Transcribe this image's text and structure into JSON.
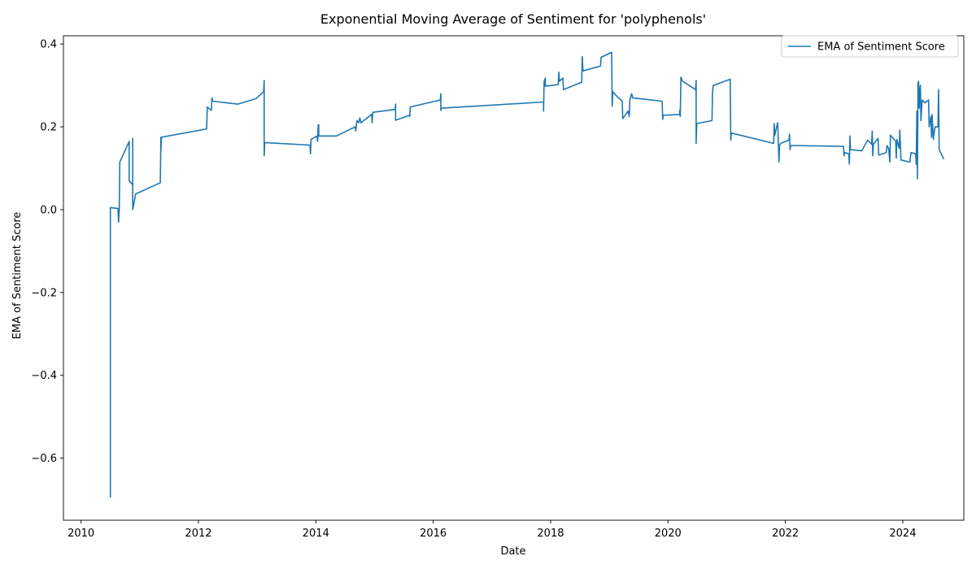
{
  "chart_data": {
    "type": "line",
    "title": "Exponential Moving Average of Sentiment for 'polyphenols'",
    "xlabel": "Date",
    "ylabel": "EMA of Sentiment Score",
    "xlim": [
      2009.7,
      2025.04
    ],
    "ylim": [
      -0.75,
      0.42
    ],
    "x_ticks": [
      2010,
      2012,
      2014,
      2016,
      2018,
      2020,
      2022,
      2024
    ],
    "x_tick_labels": [
      "2010",
      "2012",
      "2014",
      "2016",
      "2018",
      "2020",
      "2022",
      "2024"
    ],
    "y_ticks": [
      -0.6,
      -0.4,
      -0.2,
      0.0,
      0.2,
      0.4
    ],
    "y_tick_labels": [
      "−0.6",
      "−0.4",
      "−0.2",
      "0.0",
      "0.2",
      "0.4"
    ],
    "grid": false,
    "legend_position": "top-right",
    "line_color": "#1f77b4",
    "series": [
      {
        "name": "EMA of Sentiment Score",
        "points": [
          [
            2010.5,
            -0.695
          ],
          [
            2010.5,
            0.005
          ],
          [
            2010.63,
            0.003
          ],
          [
            2010.64,
            -0.03
          ],
          [
            2010.65,
            0.0
          ],
          [
            2010.66,
            0.115
          ],
          [
            2010.82,
            0.165
          ],
          [
            2010.82,
            0.07
          ],
          [
            2010.88,
            0.06
          ],
          [
            2010.88,
            0.172
          ],
          [
            2010.88,
            0.0
          ],
          [
            2010.93,
            0.038
          ],
          [
            2011.35,
            0.065
          ],
          [
            2011.36,
            0.175
          ],
          [
            2011.36,
            0.14
          ],
          [
            2011.37,
            0.175
          ],
          [
            2012.14,
            0.195
          ],
          [
            2012.15,
            0.248
          ],
          [
            2012.22,
            0.24
          ],
          [
            2012.23,
            0.27
          ],
          [
            2012.24,
            0.262
          ],
          [
            2012.67,
            0.255
          ],
          [
            2012.98,
            0.268
          ],
          [
            2013.11,
            0.285
          ],
          [
            2013.12,
            0.312
          ],
          [
            2013.12,
            0.13
          ],
          [
            2013.13,
            0.162
          ],
          [
            2013.9,
            0.156
          ],
          [
            2013.91,
            0.135
          ],
          [
            2013.92,
            0.17
          ],
          [
            2014.02,
            0.178
          ],
          [
            2014.03,
            0.165
          ],
          [
            2014.04,
            0.205
          ],
          [
            2014.05,
            0.205
          ],
          [
            2014.05,
            0.178
          ],
          [
            2014.35,
            0.178
          ],
          [
            2014.67,
            0.2
          ],
          [
            2014.68,
            0.19
          ],
          [
            2014.7,
            0.215
          ],
          [
            2014.73,
            0.21
          ],
          [
            2014.75,
            0.222
          ],
          [
            2014.77,
            0.21
          ],
          [
            2014.95,
            0.23
          ],
          [
            2014.96,
            0.21
          ],
          [
            2014.97,
            0.235
          ],
          [
            2015.35,
            0.242
          ],
          [
            2015.36,
            0.255
          ],
          [
            2015.36,
            0.216
          ],
          [
            2015.6,
            0.228
          ],
          [
            2015.6,
            0.225
          ],
          [
            2015.61,
            0.248
          ],
          [
            2016.12,
            0.265
          ],
          [
            2016.13,
            0.28
          ],
          [
            2016.13,
            0.24
          ],
          [
            2016.14,
            0.245
          ],
          [
            2017.88,
            0.26
          ],
          [
            2017.88,
            0.238
          ],
          [
            2017.89,
            0.31
          ],
          [
            2017.91,
            0.318
          ],
          [
            2017.91,
            0.298
          ],
          [
            2018.13,
            0.302
          ],
          [
            2018.14,
            0.332
          ],
          [
            2018.15,
            0.31
          ],
          [
            2018.21,
            0.318
          ],
          [
            2018.22,
            0.29
          ],
          [
            2018.53,
            0.308
          ],
          [
            2018.54,
            0.37
          ],
          [
            2018.55,
            0.335
          ],
          [
            2018.85,
            0.347
          ],
          [
            2018.86,
            0.368
          ],
          [
            2019.04,
            0.38
          ],
          [
            2019.05,
            0.25
          ],
          [
            2019.06,
            0.285
          ],
          [
            2019.1,
            0.278
          ],
          [
            2019.22,
            0.262
          ],
          [
            2019.23,
            0.22
          ],
          [
            2019.32,
            0.238
          ],
          [
            2019.34,
            0.225
          ],
          [
            2019.35,
            0.265
          ],
          [
            2019.38,
            0.28
          ],
          [
            2019.4,
            0.27
          ],
          [
            2019.9,
            0.262
          ],
          [
            2019.91,
            0.218
          ],
          [
            2019.92,
            0.228
          ],
          [
            2020.2,
            0.23
          ],
          [
            2020.2,
            0.24
          ],
          [
            2020.21,
            0.225
          ],
          [
            2020.22,
            0.32
          ],
          [
            2020.25,
            0.31
          ],
          [
            2020.47,
            0.29
          ],
          [
            2020.48,
            0.312
          ],
          [
            2020.48,
            0.16
          ],
          [
            2020.49,
            0.208
          ],
          [
            2020.75,
            0.215
          ],
          [
            2020.76,
            0.285
          ],
          [
            2020.77,
            0.3
          ],
          [
            2021.06,
            0.315
          ],
          [
            2021.07,
            0.168
          ],
          [
            2021.08,
            0.185
          ],
          [
            2021.8,
            0.16
          ],
          [
            2021.81,
            0.208
          ],
          [
            2021.82,
            0.18
          ],
          [
            2021.86,
            0.205
          ],
          [
            2021.87,
            0.21
          ],
          [
            2021.89,
            0.115
          ],
          [
            2021.9,
            0.155
          ],
          [
            2021.92,
            0.16
          ],
          [
            2022.06,
            0.168
          ],
          [
            2022.07,
            0.182
          ],
          [
            2022.08,
            0.145
          ],
          [
            2022.09,
            0.155
          ],
          [
            2022.99,
            0.153
          ],
          [
            2023.0,
            0.13
          ],
          [
            2023.01,
            0.138
          ],
          [
            2023.08,
            0.135
          ],
          [
            2023.09,
            0.11
          ],
          [
            2023.1,
            0.178
          ],
          [
            2023.11,
            0.145
          ],
          [
            2023.3,
            0.142
          ],
          [
            2023.4,
            0.168
          ],
          [
            2023.47,
            0.158
          ],
          [
            2023.48,
            0.19
          ],
          [
            2023.49,
            0.13
          ],
          [
            2023.5,
            0.158
          ],
          [
            2023.58,
            0.172
          ],
          [
            2023.59,
            0.132
          ],
          [
            2023.72,
            0.138
          ],
          [
            2023.73,
            0.155
          ],
          [
            2023.76,
            0.148
          ],
          [
            2023.78,
            0.115
          ],
          [
            2023.79,
            0.18
          ],
          [
            2023.88,
            0.165
          ],
          [
            2023.89,
            0.125
          ],
          [
            2023.9,
            0.17
          ],
          [
            2023.94,
            0.148
          ],
          [
            2023.95,
            0.192
          ],
          [
            2023.97,
            0.12
          ],
          [
            2024.12,
            0.115
          ],
          [
            2024.14,
            0.138
          ],
          [
            2024.22,
            0.135
          ],
          [
            2024.23,
            0.11
          ],
          [
            2024.24,
            0.238
          ],
          [
            2024.25,
            0.075
          ],
          [
            2024.26,
            0.305
          ],
          [
            2024.27,
            0.31
          ],
          [
            2024.28,
            0.245
          ],
          [
            2024.29,
            0.285
          ],
          [
            2024.3,
            0.3
          ],
          [
            2024.31,
            0.215
          ],
          [
            2024.33,
            0.265
          ],
          [
            2024.38,
            0.258
          ],
          [
            2024.44,
            0.265
          ],
          [
            2024.45,
            0.2
          ],
          [
            2024.46,
            0.21
          ],
          [
            2024.48,
            0.225
          ],
          [
            2024.49,
            0.175
          ],
          [
            2024.5,
            0.23
          ],
          [
            2024.52,
            0.17
          ],
          [
            2024.55,
            0.2
          ],
          [
            2024.6,
            0.2
          ],
          [
            2024.61,
            0.29
          ],
          [
            2024.62,
            0.145
          ],
          [
            2024.7,
            0.122
          ]
        ]
      }
    ]
  }
}
